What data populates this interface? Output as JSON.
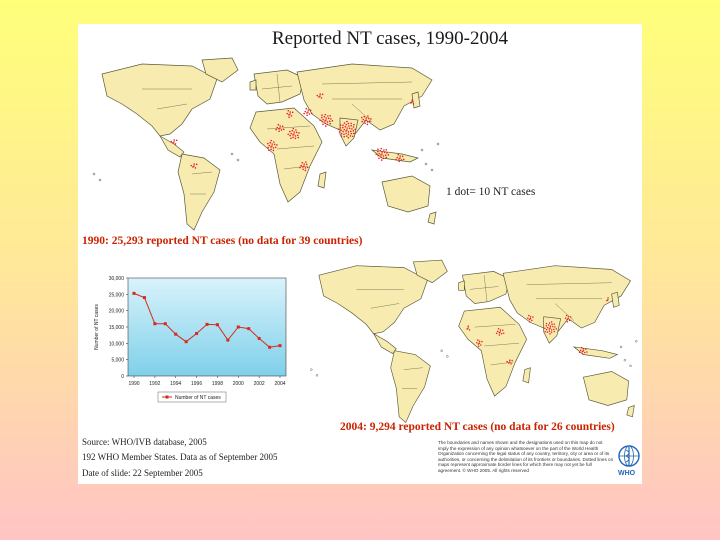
{
  "slide": {
    "title": "Reported NT cases, 1990-2004",
    "scale_note": "1 dot= 10 NT cases",
    "map1_caption": "1990: 25,293 reported NT cases (no data for 39 countries)",
    "map2_caption": "2004: 9,294 reported NT cases (no data for 26 countries)",
    "footer": {
      "source": "Source: WHO/IVB database, 2005",
      "members": "192 WHO Member States. Data as of September 2005",
      "date": "Date of slide: 22 September 2005"
    },
    "disclaimer": "The boundaries and names shown and the designations used on this map do not imply the expression of any opinion whatsoever on the part of the World Health Organization concerning the legal status of any country, territory, city or area or of its authorities, or concerning the delimitation of its frontiers or boundaries. Dotted lines on maps represent approximate border lines for which there may not yet be full agreement. © WHO 2005. All rights reserved",
    "logo_text": "WHO"
  },
  "colors": {
    "land": "#f7ebb0",
    "land_border": "#5a5a3a",
    "dots": "#e62020",
    "chart_bg_top": "#d9f3fb",
    "chart_bg_bottom": "#7fd0ea",
    "series": "#d62a1e",
    "caption": "#cc2200"
  },
  "chart_data": {
    "type": "line",
    "ylabel": "Number of NT cases",
    "ylim": [
      0,
      30000
    ],
    "y_ticks": [
      "0",
      "5,000",
      "10,000",
      "15,000",
      "20,000",
      "25,000",
      "30,000"
    ],
    "x_tick_labels": [
      "1990",
      "1992",
      "1994",
      "1996",
      "1998",
      "2000",
      "2002",
      "2004"
    ],
    "x": [
      1990,
      1991,
      1992,
      1993,
      1994,
      1995,
      1996,
      1997,
      1998,
      1999,
      2000,
      2001,
      2002,
      2003,
      2004
    ],
    "series": [
      {
        "name": "Number of NT cases",
        "values": [
          25293,
          24000,
          16000,
          16000,
          12800,
          10500,
          13000,
          15800,
          15700,
          11000,
          15000,
          14500,
          11500,
          8800,
          9294
        ]
      }
    ],
    "legend": "bottom-center",
    "grid": false
  }
}
